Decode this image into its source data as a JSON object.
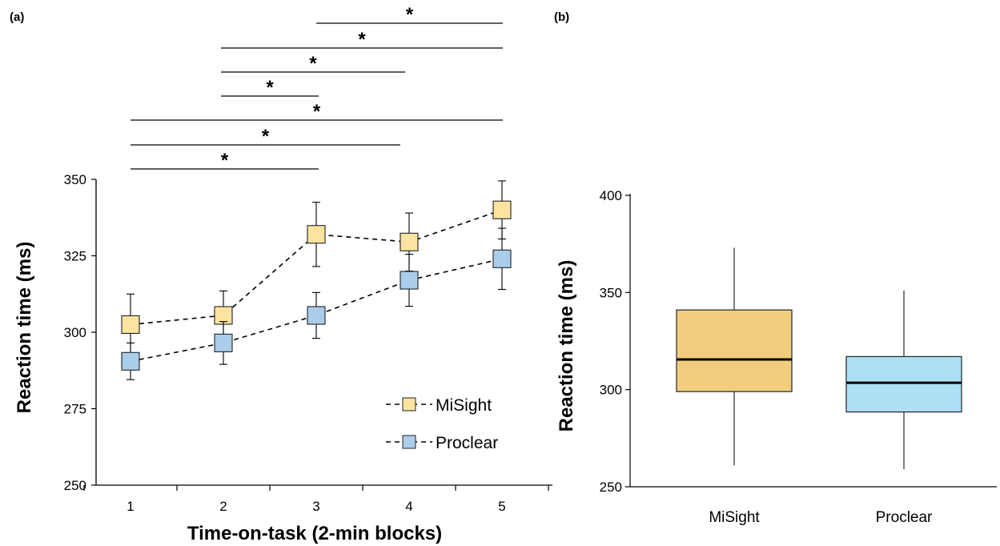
{
  "figure": {
    "panel_a_label": "(a)",
    "panel_b_label": "(b)"
  },
  "chart_data": [
    {
      "type": "line",
      "panel": "(a)",
      "xlabel": "Time-on-task (2-min blocks)",
      "ylabel": "Reaction time (ms)",
      "x": [
        1,
        2,
        3,
        4,
        5
      ],
      "ylim": [
        250,
        350
      ],
      "yticks": [
        250,
        275,
        300,
        325,
        350
      ],
      "grid": false,
      "legend_position": "bottom-right",
      "series": [
        {
          "name": "MiSight",
          "color": "#fbe3a0",
          "values": [
            302.5,
            305.5,
            332,
            329.5,
            340
          ],
          "error": [
            10,
            8,
            10.5,
            9.5,
            9.5
          ]
        },
        {
          "name": "Proclear",
          "color": "#a9cdea",
          "values": [
            290.5,
            296.5,
            305.5,
            317,
            324
          ],
          "error": [
            6,
            7,
            7.5,
            8.5,
            10
          ]
        }
      ],
      "significance": [
        {
          "from": 3,
          "to": 5,
          "label": "*"
        },
        {
          "from": 2,
          "to": 5,
          "label": "*"
        },
        {
          "from": 2,
          "to": 4,
          "label": "*"
        },
        {
          "from": 2,
          "to": 3,
          "label": "*"
        },
        {
          "from": 1,
          "to": 5,
          "label": "*"
        },
        {
          "from": 1,
          "to": 4,
          "label": "*"
        },
        {
          "from": 1,
          "to": 3,
          "label": "*"
        }
      ]
    },
    {
      "type": "box",
      "panel": "(b)",
      "ylabel": "Reaction time (ms)",
      "ylim": [
        250,
        400
      ],
      "yticks": [
        250,
        300,
        350,
        400
      ],
      "categories": [
        "MiSight",
        "Proclear"
      ],
      "boxes": [
        {
          "name": "MiSight",
          "color": "#f2cd7e",
          "min": 261,
          "q1": 299,
          "median": 315.5,
          "q3": 341,
          "max": 373
        },
        {
          "name": "Proclear",
          "color": "#ade0f5",
          "min": 259,
          "q1": 288.5,
          "median": 303.5,
          "q3": 317,
          "max": 351
        }
      ]
    }
  ]
}
